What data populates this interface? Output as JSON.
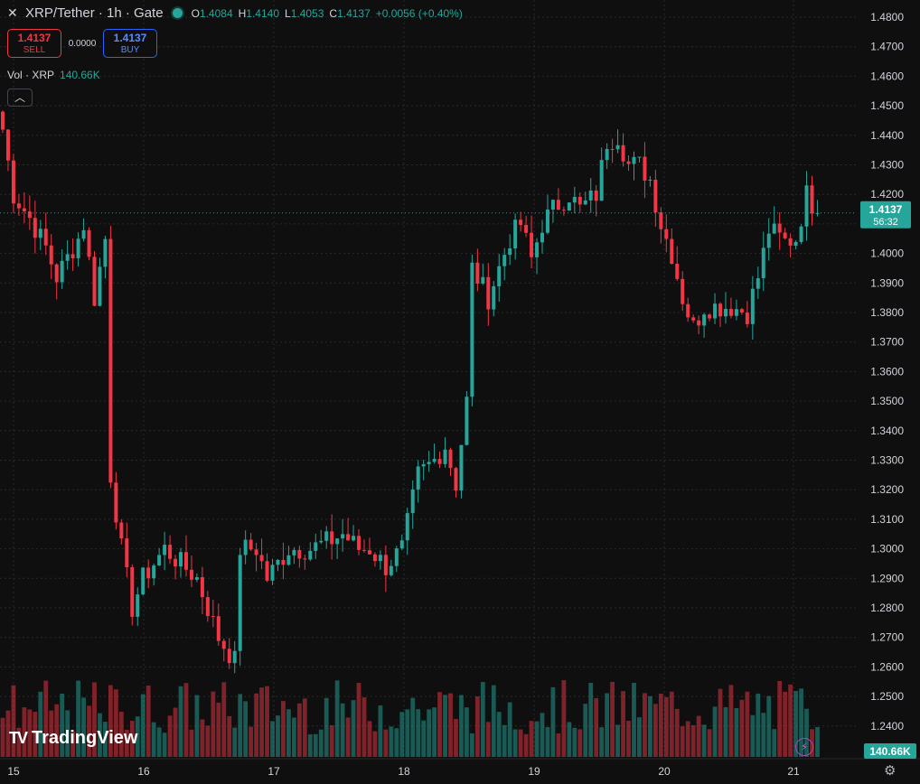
{
  "header": {
    "close_icon": "close-icon",
    "symbol": "XRP/Tether · 1h · Gate",
    "status_color": "#26a69a",
    "ohlc": [
      {
        "key": "O",
        "value": "1.4084"
      },
      {
        "key": "H",
        "value": "1.4140"
      },
      {
        "key": "L",
        "value": "1.4053"
      },
      {
        "key": "C",
        "value": "1.4137"
      }
    ],
    "change": "+0.0056 (+0.40%)"
  },
  "trade": {
    "sell_price": "1.4137",
    "sell_label": "SELL",
    "spread": "0.0000",
    "buy_price": "1.4137",
    "buy_label": "BUY"
  },
  "volume": {
    "label": "Vol · XRP",
    "value": "140.66K"
  },
  "collapse_icon": "chevron-up-icon",
  "brand": "TradingView",
  "colors": {
    "up": "#26a69a",
    "down": "#f23645",
    "background": "#0f0f0f",
    "price_tag": "#26a69a"
  },
  "chart_data": {
    "type": "candlestick",
    "yaxis_ticks": [
      "1.4800",
      "1.4700",
      "1.4600",
      "1.4500",
      "1.4400",
      "1.4300",
      "1.4200",
      "1.4100",
      "1.4000",
      "1.3900",
      "1.3800",
      "1.3700",
      "1.3600",
      "1.3500",
      "1.3400",
      "1.3300",
      "1.3200",
      "1.3100",
      "1.3000",
      "1.2900",
      "1.2800",
      "1.2700",
      "1.2600",
      "1.2500",
      "1.2400"
    ],
    "ylim": [
      1.23,
      1.48
    ],
    "xaxis_labels": [
      "15",
      "16",
      "17",
      "18",
      "19",
      "20",
      "21"
    ],
    "last_price": "1.4137",
    "countdown": "56:32",
    "volume_label": "140.66K",
    "grid": true,
    "waypoints": [
      [
        0,
        1.442
      ],
      [
        2,
        1.42
      ],
      [
        5,
        1.412
      ],
      [
        8,
        1.402
      ],
      [
        10,
        1.392
      ],
      [
        14,
        1.405
      ],
      [
        15,
        1.41
      ],
      [
        17,
        1.385
      ],
      [
        19,
        1.405
      ],
      [
        20,
        1.325
      ],
      [
        22,
        1.3
      ],
      [
        24,
        1.28
      ],
      [
        26,
        1.29
      ],
      [
        30,
        1.3
      ],
      [
        33,
        1.295
      ],
      [
        36,
        1.29
      ],
      [
        40,
        1.27
      ],
      [
        43,
        1.262
      ],
      [
        44,
        1.3
      ],
      [
        47,
        1.3
      ],
      [
        49,
        1.29
      ],
      [
        53,
        1.3
      ],
      [
        57,
        1.3
      ],
      [
        61,
        1.303
      ],
      [
        63,
        1.305
      ],
      [
        66,
        1.3
      ],
      [
        68,
        1.3
      ],
      [
        71,
        1.294
      ],
      [
        74,
        1.3
      ],
      [
        77,
        1.325
      ],
      [
        80,
        1.33
      ],
      [
        82,
        1.335
      ],
      [
        84,
        1.322
      ],
      [
        86,
        1.35
      ],
      [
        87,
        1.395
      ],
      [
        90,
        1.385
      ],
      [
        94,
        1.405
      ],
      [
        96,
        1.41
      ],
      [
        98,
        1.398
      ],
      [
        100,
        1.41
      ],
      [
        102,
        1.415
      ],
      [
        105,
        1.42
      ],
      [
        107,
        1.415
      ],
      [
        110,
        1.42
      ],
      [
        112,
        1.438
      ],
      [
        114,
        1.44
      ],
      [
        116,
        1.43
      ],
      [
        118,
        1.43
      ],
      [
        120,
        1.425
      ],
      [
        122,
        1.41
      ],
      [
        124,
        1.4
      ],
      [
        126,
        1.385
      ],
      [
        128,
        1.375
      ],
      [
        130,
        1.382
      ],
      [
        133,
        1.382
      ],
      [
        135,
        1.382
      ],
      [
        138,
        1.38
      ],
      [
        140,
        1.392
      ],
      [
        142,
        1.408
      ],
      [
        145,
        1.404
      ],
      [
        147,
        1.405
      ],
      [
        149,
        1.42
      ],
      [
        151,
        1.4137
      ]
    ]
  }
}
